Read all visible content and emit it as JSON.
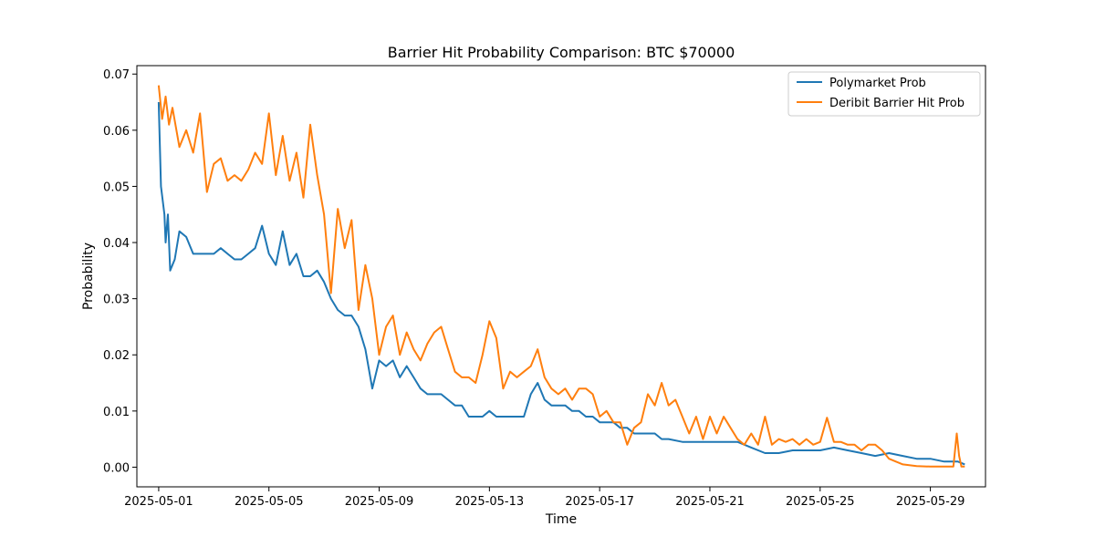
{
  "chart_data": {
    "type": "line",
    "title": "Barrier Hit Probability Comparison: BTC $70000",
    "xlabel": "Time",
    "ylabel": "Probability",
    "xlim": [
      "2025-04-30T05:00",
      "2025-05-31T00:00"
    ],
    "ylim": [
      -0.0035,
      0.0715
    ],
    "x_ticks": [
      "2025-05-01",
      "2025-05-05",
      "2025-05-09",
      "2025-05-13",
      "2025-05-17",
      "2025-05-21",
      "2025-05-25",
      "2025-05-29"
    ],
    "y_ticks": [
      "0.00",
      "0.01",
      "0.02",
      "0.03",
      "0.04",
      "0.05",
      "0.06",
      "0.07"
    ],
    "grid": false,
    "legend_position": "top-right",
    "series": [
      {
        "name": "Polymarket Prob",
        "color": "#1f77b4",
        "points": [
          [
            "2025-05-01T00:00",
            0.065
          ],
          [
            "2025-05-01T02:00",
            0.05
          ],
          [
            "2025-05-01T05:00",
            0.045
          ],
          [
            "2025-05-01T06:00",
            0.04
          ],
          [
            "2025-05-01T08:00",
            0.045
          ],
          [
            "2025-05-01T10:00",
            0.035
          ],
          [
            "2025-05-01T14:00",
            0.037
          ],
          [
            "2025-05-01T18:00",
            0.042
          ],
          [
            "2025-05-02T00:00",
            0.041
          ],
          [
            "2025-05-02T06:00",
            0.038
          ],
          [
            "2025-05-02T12:00",
            0.038
          ],
          [
            "2025-05-02T18:00",
            0.038
          ],
          [
            "2025-05-03T00:00",
            0.038
          ],
          [
            "2025-05-03T06:00",
            0.039
          ],
          [
            "2025-05-03T12:00",
            0.038
          ],
          [
            "2025-05-03T18:00",
            0.037
          ],
          [
            "2025-05-04T00:00",
            0.037
          ],
          [
            "2025-05-04T06:00",
            0.038
          ],
          [
            "2025-05-04T12:00",
            0.039
          ],
          [
            "2025-05-04T18:00",
            0.043
          ],
          [
            "2025-05-05T00:00",
            0.038
          ],
          [
            "2025-05-05T06:00",
            0.036
          ],
          [
            "2025-05-05T12:00",
            0.042
          ],
          [
            "2025-05-05T18:00",
            0.036
          ],
          [
            "2025-05-06T00:00",
            0.038
          ],
          [
            "2025-05-06T06:00",
            0.034
          ],
          [
            "2025-05-06T12:00",
            0.034
          ],
          [
            "2025-05-06T18:00",
            0.035
          ],
          [
            "2025-05-07T00:00",
            0.033
          ],
          [
            "2025-05-07T06:00",
            0.03
          ],
          [
            "2025-05-07T12:00",
            0.028
          ],
          [
            "2025-05-07T18:00",
            0.027
          ],
          [
            "2025-05-08T00:00",
            0.027
          ],
          [
            "2025-05-08T06:00",
            0.025
          ],
          [
            "2025-05-08T12:00",
            0.021
          ],
          [
            "2025-05-08T18:00",
            0.014
          ],
          [
            "2025-05-09T00:00",
            0.019
          ],
          [
            "2025-05-09T06:00",
            0.018
          ],
          [
            "2025-05-09T12:00",
            0.019
          ],
          [
            "2025-05-09T18:00",
            0.016
          ],
          [
            "2025-05-10T00:00",
            0.018
          ],
          [
            "2025-05-10T06:00",
            0.016
          ],
          [
            "2025-05-10T12:00",
            0.014
          ],
          [
            "2025-05-10T18:00",
            0.013
          ],
          [
            "2025-05-11T00:00",
            0.013
          ],
          [
            "2025-05-11T06:00",
            0.013
          ],
          [
            "2025-05-11T12:00",
            0.012
          ],
          [
            "2025-05-11T18:00",
            0.011
          ],
          [
            "2025-05-12T00:00",
            0.011
          ],
          [
            "2025-05-12T06:00",
            0.009
          ],
          [
            "2025-05-12T12:00",
            0.009
          ],
          [
            "2025-05-12T18:00",
            0.009
          ],
          [
            "2025-05-13T00:00",
            0.01
          ],
          [
            "2025-05-13T06:00",
            0.009
          ],
          [
            "2025-05-13T12:00",
            0.009
          ],
          [
            "2025-05-13T18:00",
            0.009
          ],
          [
            "2025-05-14T00:00",
            0.009
          ],
          [
            "2025-05-14T06:00",
            0.009
          ],
          [
            "2025-05-14T12:00",
            0.013
          ],
          [
            "2025-05-14T18:00",
            0.015
          ],
          [
            "2025-05-15T00:00",
            0.012
          ],
          [
            "2025-05-15T06:00",
            0.011
          ],
          [
            "2025-05-15T12:00",
            0.011
          ],
          [
            "2025-05-15T18:00",
            0.011
          ],
          [
            "2025-05-16T00:00",
            0.01
          ],
          [
            "2025-05-16T06:00",
            0.01
          ],
          [
            "2025-05-16T12:00",
            0.009
          ],
          [
            "2025-05-16T18:00",
            0.009
          ],
          [
            "2025-05-17T00:00",
            0.008
          ],
          [
            "2025-05-17T06:00",
            0.008
          ],
          [
            "2025-05-17T12:00",
            0.008
          ],
          [
            "2025-05-17T18:00",
            0.007
          ],
          [
            "2025-05-18T00:00",
            0.007
          ],
          [
            "2025-05-18T06:00",
            0.006
          ],
          [
            "2025-05-18T12:00",
            0.006
          ],
          [
            "2025-05-18T18:00",
            0.006
          ],
          [
            "2025-05-19T00:00",
            0.006
          ],
          [
            "2025-05-19T06:00",
            0.005
          ],
          [
            "2025-05-19T12:00",
            0.005
          ],
          [
            "2025-05-20T00:00",
            0.0045
          ],
          [
            "2025-05-20T12:00",
            0.0045
          ],
          [
            "2025-05-21T00:00",
            0.0045
          ],
          [
            "2025-05-21T12:00",
            0.0045
          ],
          [
            "2025-05-22T00:00",
            0.0045
          ],
          [
            "2025-05-22T12:00",
            0.0035
          ],
          [
            "2025-05-23T00:00",
            0.0025
          ],
          [
            "2025-05-23T12:00",
            0.0025
          ],
          [
            "2025-05-24T00:00",
            0.003
          ],
          [
            "2025-05-24T12:00",
            0.003
          ],
          [
            "2025-05-25T00:00",
            0.003
          ],
          [
            "2025-05-25T12:00",
            0.0035
          ],
          [
            "2025-05-26T00:00",
            0.003
          ],
          [
            "2025-05-26T12:00",
            0.0025
          ],
          [
            "2025-05-27T00:00",
            0.002
          ],
          [
            "2025-05-27T12:00",
            0.0025
          ],
          [
            "2025-05-28T00:00",
            0.002
          ],
          [
            "2025-05-28T12:00",
            0.0015
          ],
          [
            "2025-05-29T00:00",
            0.0015
          ],
          [
            "2025-05-29T12:00",
            0.001
          ],
          [
            "2025-05-30T00:00",
            0.001
          ],
          [
            "2025-05-30T06:00",
            0.0005
          ]
        ]
      },
      {
        "name": "Deribit Barrier Hit Prob",
        "color": "#ff7f0e",
        "points": [
          [
            "2025-05-01T00:00",
            0.068
          ],
          [
            "2025-05-01T03:00",
            0.062
          ],
          [
            "2025-05-01T06:00",
            0.066
          ],
          [
            "2025-05-01T09:00",
            0.061
          ],
          [
            "2025-05-01T12:00",
            0.064
          ],
          [
            "2025-05-01T18:00",
            0.057
          ],
          [
            "2025-05-02T00:00",
            0.06
          ],
          [
            "2025-05-02T06:00",
            0.056
          ],
          [
            "2025-05-02T12:00",
            0.063
          ],
          [
            "2025-05-02T18:00",
            0.049
          ],
          [
            "2025-05-03T00:00",
            0.054
          ],
          [
            "2025-05-03T06:00",
            0.055
          ],
          [
            "2025-05-03T12:00",
            0.051
          ],
          [
            "2025-05-03T18:00",
            0.052
          ],
          [
            "2025-05-04T00:00",
            0.051
          ],
          [
            "2025-05-04T06:00",
            0.053
          ],
          [
            "2025-05-04T12:00",
            0.056
          ],
          [
            "2025-05-04T18:00",
            0.054
          ],
          [
            "2025-05-05T00:00",
            0.063
          ],
          [
            "2025-05-05T06:00",
            0.052
          ],
          [
            "2025-05-05T12:00",
            0.059
          ],
          [
            "2025-05-05T18:00",
            0.051
          ],
          [
            "2025-05-06T00:00",
            0.056
          ],
          [
            "2025-05-06T06:00",
            0.048
          ],
          [
            "2025-05-06T12:00",
            0.061
          ],
          [
            "2025-05-06T18:00",
            0.052
          ],
          [
            "2025-05-07T00:00",
            0.045
          ],
          [
            "2025-05-07T06:00",
            0.031
          ],
          [
            "2025-05-07T12:00",
            0.046
          ],
          [
            "2025-05-07T18:00",
            0.039
          ],
          [
            "2025-05-08T00:00",
            0.044
          ],
          [
            "2025-05-08T06:00",
            0.028
          ],
          [
            "2025-05-08T12:00",
            0.036
          ],
          [
            "2025-05-08T18:00",
            0.03
          ],
          [
            "2025-05-09T00:00",
            0.02
          ],
          [
            "2025-05-09T06:00",
            0.025
          ],
          [
            "2025-05-09T12:00",
            0.027
          ],
          [
            "2025-05-09T18:00",
            0.02
          ],
          [
            "2025-05-10T00:00",
            0.024
          ],
          [
            "2025-05-10T06:00",
            0.021
          ],
          [
            "2025-05-10T12:00",
            0.019
          ],
          [
            "2025-05-10T18:00",
            0.022
          ],
          [
            "2025-05-11T00:00",
            0.024
          ],
          [
            "2025-05-11T06:00",
            0.025
          ],
          [
            "2025-05-11T12:00",
            0.021
          ],
          [
            "2025-05-11T18:00",
            0.017
          ],
          [
            "2025-05-12T00:00",
            0.016
          ],
          [
            "2025-05-12T06:00",
            0.016
          ],
          [
            "2025-05-12T12:00",
            0.015
          ],
          [
            "2025-05-12T18:00",
            0.02
          ],
          [
            "2025-05-13T00:00",
            0.026
          ],
          [
            "2025-05-13T06:00",
            0.023
          ],
          [
            "2025-05-13T12:00",
            0.014
          ],
          [
            "2025-05-13T18:00",
            0.017
          ],
          [
            "2025-05-14T00:00",
            0.016
          ],
          [
            "2025-05-14T06:00",
            0.017
          ],
          [
            "2025-05-14T12:00",
            0.018
          ],
          [
            "2025-05-14T18:00",
            0.021
          ],
          [
            "2025-05-15T00:00",
            0.016
          ],
          [
            "2025-05-15T06:00",
            0.014
          ],
          [
            "2025-05-15T12:00",
            0.013
          ],
          [
            "2025-05-15T18:00",
            0.014
          ],
          [
            "2025-05-16T00:00",
            0.012
          ],
          [
            "2025-05-16T06:00",
            0.014
          ],
          [
            "2025-05-16T12:00",
            0.014
          ],
          [
            "2025-05-16T18:00",
            0.013
          ],
          [
            "2025-05-17T00:00",
            0.009
          ],
          [
            "2025-05-17T06:00",
            0.01
          ],
          [
            "2025-05-17T12:00",
            0.008
          ],
          [
            "2025-05-17T18:00",
            0.008
          ],
          [
            "2025-05-18T00:00",
            0.004
          ],
          [
            "2025-05-18T06:00",
            0.007
          ],
          [
            "2025-05-18T12:00",
            0.008
          ],
          [
            "2025-05-18T18:00",
            0.013
          ],
          [
            "2025-05-19T00:00",
            0.011
          ],
          [
            "2025-05-19T06:00",
            0.015
          ],
          [
            "2025-05-19T12:00",
            0.011
          ],
          [
            "2025-05-19T18:00",
            0.012
          ],
          [
            "2025-05-20T00:00",
            0.009
          ],
          [
            "2025-05-20T06:00",
            0.006
          ],
          [
            "2025-05-20T12:00",
            0.009
          ],
          [
            "2025-05-20T18:00",
            0.005
          ],
          [
            "2025-05-21T00:00",
            0.009
          ],
          [
            "2025-05-21T06:00",
            0.006
          ],
          [
            "2025-05-21T12:00",
            0.009
          ],
          [
            "2025-05-21T18:00",
            0.007
          ],
          [
            "2025-05-22T00:00",
            0.005
          ],
          [
            "2025-05-22T06:00",
            0.004
          ],
          [
            "2025-05-22T12:00",
            0.006
          ],
          [
            "2025-05-22T18:00",
            0.004
          ],
          [
            "2025-05-23T00:00",
            0.009
          ],
          [
            "2025-05-23T06:00",
            0.004
          ],
          [
            "2025-05-23T12:00",
            0.005
          ],
          [
            "2025-05-23T18:00",
            0.0045
          ],
          [
            "2025-05-24T00:00",
            0.005
          ],
          [
            "2025-05-24T06:00",
            0.004
          ],
          [
            "2025-05-24T12:00",
            0.005
          ],
          [
            "2025-05-24T18:00",
            0.004
          ],
          [
            "2025-05-25T00:00",
            0.0045
          ],
          [
            "2025-05-25T06:00",
            0.0088
          ],
          [
            "2025-05-25T12:00",
            0.0045
          ],
          [
            "2025-05-25T18:00",
            0.0045
          ],
          [
            "2025-05-26T00:00",
            0.004
          ],
          [
            "2025-05-26T06:00",
            0.004
          ],
          [
            "2025-05-26T12:00",
            0.003
          ],
          [
            "2025-05-26T18:00",
            0.004
          ],
          [
            "2025-05-27T00:00",
            0.004
          ],
          [
            "2025-05-27T06:00",
            0.003
          ],
          [
            "2025-05-27T12:00",
            0.0015
          ],
          [
            "2025-05-27T18:00",
            0.001
          ],
          [
            "2025-05-28T00:00",
            0.0005
          ],
          [
            "2025-05-28T12:00",
            0.0002
          ],
          [
            "2025-05-29T00:00",
            0.0001
          ],
          [
            "2025-05-29T12:00",
            0.0001
          ],
          [
            "2025-05-29T20:00",
            0.0001
          ],
          [
            "2025-05-29T23:00",
            0.006
          ],
          [
            "2025-05-30T01:00",
            0.002
          ],
          [
            "2025-05-30T03:00",
            0.0001
          ],
          [
            "2025-05-30T06:00",
            0.0001
          ]
        ]
      }
    ]
  }
}
